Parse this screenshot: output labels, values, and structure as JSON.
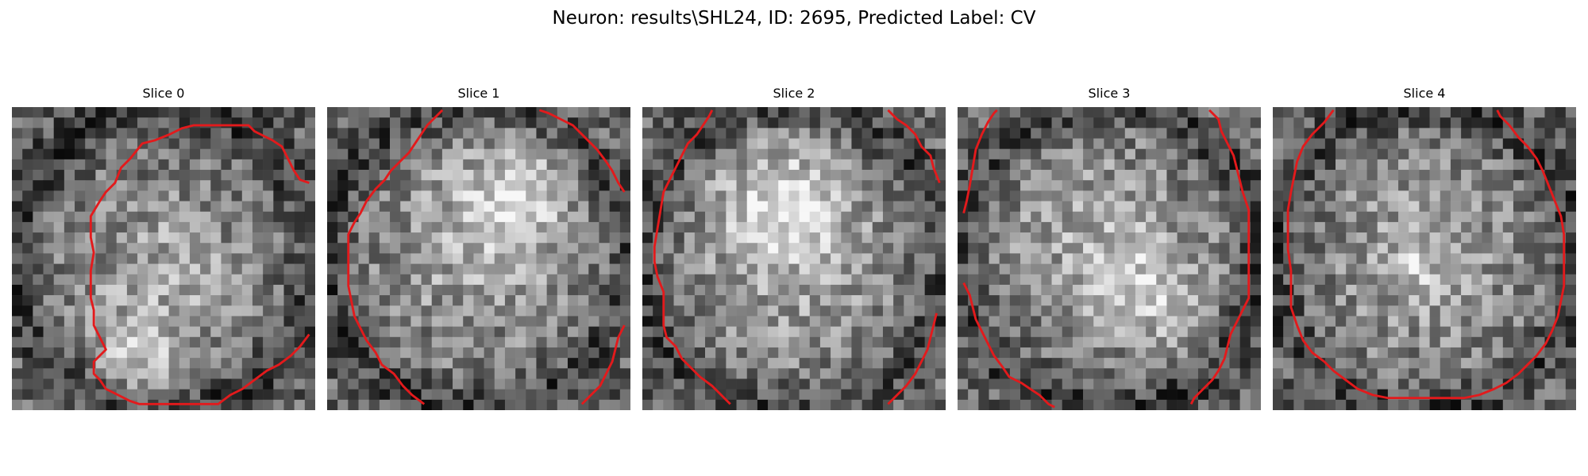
{
  "figure": {
    "title": "Neuron: results\\SHL24, ID: 2695, Predicted Label: CV",
    "contour_color": "#e31a1c",
    "grid_size": 29
  },
  "slices": [
    {
      "title": "Slice 0",
      "seed": 11,
      "bright_regions": [
        [
          0.5,
          0.55,
          0.35
        ],
        [
          0.42,
          0.83,
          0.14
        ]
      ],
      "dark_ring": true,
      "contours": [
        [
          [
            0.29,
            0.9
          ],
          [
            0.27,
            0.88
          ],
          [
            0.27,
            0.84
          ],
          [
            0.29,
            0.82
          ],
          [
            0.31,
            0.8
          ],
          [
            0.29,
            0.76
          ],
          [
            0.27,
            0.72
          ],
          [
            0.27,
            0.67
          ],
          [
            0.26,
            0.63
          ],
          [
            0.26,
            0.58
          ],
          [
            0.26,
            0.54
          ],
          [
            0.27,
            0.48
          ],
          [
            0.26,
            0.43
          ],
          [
            0.26,
            0.36
          ],
          [
            0.29,
            0.31
          ],
          [
            0.31,
            0.28
          ],
          [
            0.34,
            0.25
          ],
          [
            0.36,
            0.2
          ],
          [
            0.39,
            0.17
          ],
          [
            0.43,
            0.12
          ],
          [
            0.47,
            0.11
          ],
          [
            0.52,
            0.09
          ],
          [
            0.56,
            0.07
          ],
          [
            0.6,
            0.06
          ],
          [
            0.64,
            0.06
          ],
          [
            0.69,
            0.06
          ],
          [
            0.73,
            0.06
          ],
          [
            0.78,
            0.06
          ],
          [
            0.8,
            0.08
          ],
          [
            0.82,
            0.09
          ],
          [
            0.86,
            0.11
          ],
          [
            0.89,
            0.13
          ],
          [
            0.91,
            0.17
          ],
          [
            0.93,
            0.21
          ],
          [
            0.95,
            0.24
          ],
          [
            0.98,
            0.25
          ]
        ],
        [
          [
            0.29,
            0.9
          ],
          [
            0.31,
            0.93
          ],
          [
            0.35,
            0.95
          ],
          [
            0.39,
            0.97
          ],
          [
            0.42,
            0.98
          ],
          [
            0.46,
            0.98
          ],
          [
            0.5,
            0.98
          ],
          [
            0.54,
            0.98
          ],
          [
            0.58,
            0.98
          ],
          [
            0.62,
            0.98
          ],
          [
            0.68,
            0.98
          ],
          [
            0.72,
            0.95
          ],
          [
            0.76,
            0.93
          ],
          [
            0.8,
            0.9
          ],
          [
            0.84,
            0.87
          ],
          [
            0.88,
            0.85
          ],
          [
            0.92,
            0.82
          ],
          [
            0.95,
            0.79
          ],
          [
            0.98,
            0.75
          ]
        ]
      ]
    },
    {
      "title": "Slice 1",
      "seed": 23,
      "bright_regions": [
        [
          0.5,
          0.45,
          0.42
        ],
        [
          0.62,
          0.3,
          0.18
        ]
      ],
      "dark_ring": true,
      "contours": [
        [
          [
            0.32,
            0.98
          ],
          [
            0.28,
            0.95
          ],
          [
            0.25,
            0.92
          ],
          [
            0.22,
            0.88
          ],
          [
            0.18,
            0.85
          ],
          [
            0.16,
            0.81
          ],
          [
            0.13,
            0.77
          ],
          [
            0.11,
            0.73
          ],
          [
            0.09,
            0.69
          ],
          [
            0.08,
            0.64
          ],
          [
            0.07,
            0.59
          ],
          [
            0.07,
            0.54
          ],
          [
            0.07,
            0.49
          ],
          [
            0.07,
            0.42
          ],
          [
            0.09,
            0.38
          ],
          [
            0.11,
            0.35
          ],
          [
            0.13,
            0.31
          ],
          [
            0.16,
            0.27
          ],
          [
            0.19,
            0.24
          ],
          [
            0.21,
            0.21
          ],
          [
            0.24,
            0.18
          ],
          [
            0.27,
            0.15
          ],
          [
            0.29,
            0.12
          ],
          [
            0.31,
            0.09
          ],
          [
            0.33,
            0.06
          ],
          [
            0.36,
            0.03
          ],
          [
            0.38,
            0.01
          ]
        ],
        [
          [
            0.7,
            0.01
          ],
          [
            0.73,
            0.02
          ],
          [
            0.77,
            0.04
          ],
          [
            0.81,
            0.06
          ],
          [
            0.85,
            0.1
          ],
          [
            0.89,
            0.14
          ],
          [
            0.92,
            0.18
          ],
          [
            0.94,
            0.21
          ],
          [
            0.96,
            0.25
          ],
          [
            0.98,
            0.28
          ]
        ],
        [
          [
            0.84,
            0.98
          ],
          [
            0.87,
            0.95
          ],
          [
            0.9,
            0.92
          ],
          [
            0.92,
            0.88
          ],
          [
            0.94,
            0.84
          ],
          [
            0.95,
            0.8
          ],
          [
            0.96,
            0.76
          ],
          [
            0.98,
            0.72
          ]
        ]
      ]
    },
    {
      "title": "Slice 2",
      "seed": 37,
      "bright_regions": [
        [
          0.5,
          0.5,
          0.42
        ],
        [
          0.45,
          0.3,
          0.2
        ]
      ],
      "dark_ring": true,
      "contours": [
        [
          [
            0.29,
            0.98
          ],
          [
            0.26,
            0.95
          ],
          [
            0.23,
            0.92
          ],
          [
            0.19,
            0.89
          ],
          [
            0.16,
            0.86
          ],
          [
            0.13,
            0.83
          ],
          [
            0.11,
            0.79
          ],
          [
            0.08,
            0.76
          ],
          [
            0.07,
            0.72
          ],
          [
            0.07,
            0.67
          ],
          [
            0.07,
            0.61
          ],
          [
            0.05,
            0.56
          ],
          [
            0.04,
            0.51
          ],
          [
            0.04,
            0.46
          ],
          [
            0.05,
            0.4
          ],
          [
            0.06,
            0.34
          ],
          [
            0.07,
            0.28
          ],
          [
            0.09,
            0.24
          ],
          [
            0.11,
            0.2
          ],
          [
            0.13,
            0.16
          ],
          [
            0.15,
            0.12
          ],
          [
            0.18,
            0.09
          ],
          [
            0.2,
            0.06
          ],
          [
            0.22,
            0.03
          ],
          [
            0.23,
            0.01
          ]
        ],
        [
          [
            0.81,
            0.01
          ],
          [
            0.84,
            0.04
          ],
          [
            0.87,
            0.06
          ],
          [
            0.9,
            0.09
          ],
          [
            0.92,
            0.13
          ],
          [
            0.95,
            0.16
          ],
          [
            0.96,
            0.2
          ],
          [
            0.98,
            0.25
          ]
        ],
        [
          [
            0.81,
            0.98
          ],
          [
            0.84,
            0.95
          ],
          [
            0.87,
            0.92
          ],
          [
            0.9,
            0.88
          ],
          [
            0.92,
            0.84
          ],
          [
            0.94,
            0.8
          ],
          [
            0.95,
            0.76
          ],
          [
            0.96,
            0.72
          ],
          [
            0.97,
            0.68
          ]
        ]
      ]
    },
    {
      "title": "Slice 3",
      "seed": 51,
      "bright_regions": [
        [
          0.45,
          0.42,
          0.38
        ],
        [
          0.65,
          0.62,
          0.2
        ]
      ],
      "dark_ring": true,
      "contours": [
        [
          [
            0.02,
            0.35
          ],
          [
            0.03,
            0.31
          ],
          [
            0.04,
            0.26
          ],
          [
            0.05,
            0.2
          ],
          [
            0.06,
            0.14
          ],
          [
            0.08,
            0.09
          ],
          [
            0.1,
            0.05
          ],
          [
            0.12,
            0.02
          ],
          [
            0.13,
            0.01
          ]
        ],
        [
          [
            0.83,
            0.01
          ],
          [
            0.86,
            0.04
          ],
          [
            0.87,
            0.08
          ],
          [
            0.89,
            0.12
          ],
          [
            0.91,
            0.16
          ],
          [
            0.92,
            0.2
          ],
          [
            0.93,
            0.24
          ],
          [
            0.94,
            0.28
          ],
          [
            0.95,
            0.31
          ],
          [
            0.96,
            0.34
          ],
          [
            0.96,
            0.4
          ],
          [
            0.96,
            0.48
          ],
          [
            0.96,
            0.56
          ],
          [
            0.96,
            0.63
          ],
          [
            0.94,
            0.67
          ],
          [
            0.92,
            0.71
          ],
          [
            0.9,
            0.75
          ],
          [
            0.89,
            0.79
          ],
          [
            0.88,
            0.83
          ],
          [
            0.86,
            0.87
          ],
          [
            0.84,
            0.9
          ],
          [
            0.81,
            0.93
          ],
          [
            0.78,
            0.96
          ],
          [
            0.77,
            0.98
          ]
        ],
        [
          [
            0.02,
            0.58
          ],
          [
            0.04,
            0.62
          ],
          [
            0.05,
            0.66
          ],
          [
            0.06,
            0.7
          ],
          [
            0.08,
            0.74
          ],
          [
            0.1,
            0.78
          ],
          [
            0.12,
            0.82
          ],
          [
            0.15,
            0.86
          ],
          [
            0.17,
            0.89
          ],
          [
            0.21,
            0.91
          ],
          [
            0.24,
            0.93
          ],
          [
            0.27,
            0.95
          ],
          [
            0.3,
            0.98
          ],
          [
            0.32,
            0.99
          ]
        ]
      ]
    },
    {
      "title": "Slice 4",
      "seed": 67,
      "bright_regions": [
        [
          0.5,
          0.5,
          0.4
        ],
        [
          0.47,
          0.52,
          0.05
        ]
      ],
      "dark_ring": true,
      "contours": [
        [
          [
            0.2,
            0.01
          ],
          [
            0.17,
            0.05
          ],
          [
            0.13,
            0.09
          ],
          [
            0.1,
            0.13
          ],
          [
            0.08,
            0.18
          ],
          [
            0.07,
            0.23
          ],
          [
            0.06,
            0.28
          ],
          [
            0.05,
            0.34
          ],
          [
            0.05,
            0.4
          ],
          [
            0.05,
            0.47
          ],
          [
            0.06,
            0.54
          ],
          [
            0.06,
            0.6
          ],
          [
            0.06,
            0.66
          ],
          [
            0.08,
            0.72
          ],
          [
            0.1,
            0.77
          ],
          [
            0.13,
            0.81
          ],
          [
            0.17,
            0.84
          ],
          [
            0.2,
            0.87
          ],
          [
            0.24,
            0.9
          ],
          [
            0.28,
            0.93
          ],
          [
            0.33,
            0.95
          ],
          [
            0.38,
            0.96
          ],
          [
            0.44,
            0.96
          ],
          [
            0.51,
            0.96
          ],
          [
            0.57,
            0.96
          ],
          [
            0.63,
            0.96
          ],
          [
            0.68,
            0.95
          ],
          [
            0.73,
            0.93
          ],
          [
            0.77,
            0.91
          ],
          [
            0.81,
            0.88
          ],
          [
            0.84,
            0.85
          ],
          [
            0.87,
            0.82
          ],
          [
            0.9,
            0.78
          ],
          [
            0.92,
            0.74
          ],
          [
            0.94,
            0.69
          ],
          [
            0.95,
            0.64
          ],
          [
            0.96,
            0.59
          ],
          [
            0.96,
            0.54
          ],
          [
            0.96,
            0.48
          ],
          [
            0.96,
            0.42
          ],
          [
            0.95,
            0.36
          ],
          [
            0.93,
            0.31
          ],
          [
            0.91,
            0.26
          ],
          [
            0.89,
            0.21
          ],
          [
            0.87,
            0.17
          ],
          [
            0.84,
            0.13
          ],
          [
            0.81,
            0.1
          ],
          [
            0.78,
            0.06
          ],
          [
            0.75,
            0.03
          ],
          [
            0.74,
            0.01
          ]
        ]
      ]
    }
  ]
}
